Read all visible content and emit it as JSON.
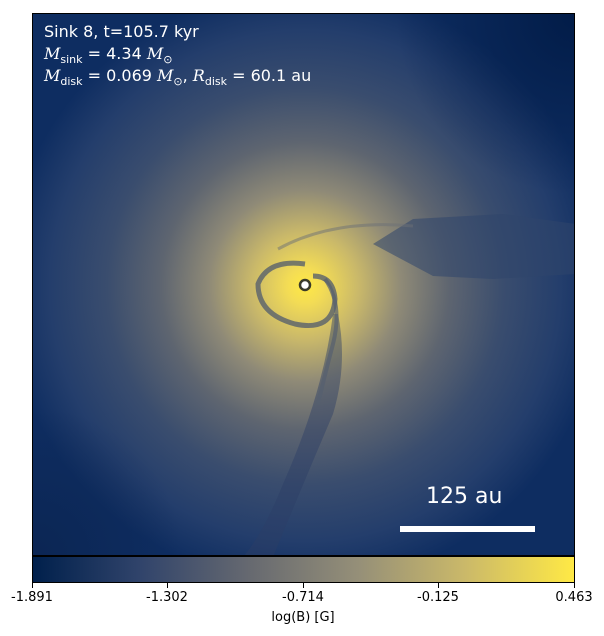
{
  "annotations": {
    "line1": "Sink 8, t=105.7 kyr",
    "m_sink_value": "= 4.34",
    "m_disk_value": "= 0.069",
    "r_disk_value": "= 60.1 au"
  },
  "scale_bar": {
    "label": "125 au"
  },
  "colorbar": {
    "label": "log(B) [G]",
    "ticks": [
      "-1.891",
      "-1.302",
      "-0.714",
      "-0.125",
      "0.463"
    ],
    "colormap": [
      "#00204c",
      "#31446b",
      "#666970",
      "#958f78",
      "#cbb969",
      "#ffe945"
    ]
  }
}
